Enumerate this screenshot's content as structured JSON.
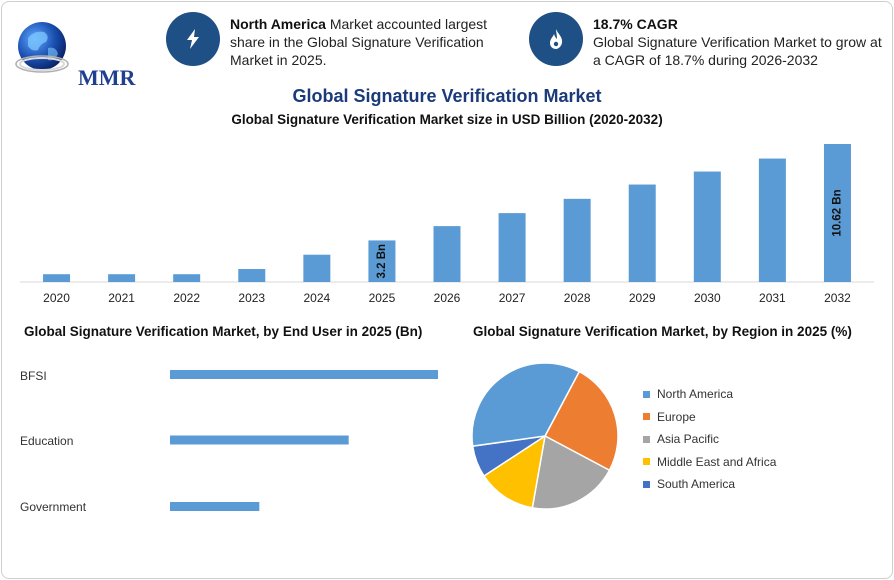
{
  "logo": {
    "text": "MMR"
  },
  "info_cards": [
    {
      "icon": "lightning-icon",
      "bold": "North America",
      "text": " Market accounted largest share in the Global Signature Verification Market in 2025."
    },
    {
      "icon": "flame-icon",
      "bold": "18.7% CAGR",
      "text": "Global Signature Verification Market to grow at a CAGR of 18.7% during 2026-2032"
    }
  ],
  "titles": {
    "main": "Global Signature Verification Market",
    "sub": "Global Signature Verification Market size in USD Billion (2020-2032)",
    "end_user": "Global Signature Verification Market, by End User in 2025 (Bn)",
    "region": "Global Signature Verification Market, by Region in 2025 (%)"
  },
  "colors": {
    "bar": "#5b9bd5",
    "dark_blue": "#1e4f85",
    "title_blue": "#1b3a7a"
  },
  "chart_data": [
    {
      "type": "bar",
      "title": "Global Signature Verification Market size in USD Billion (2020-2032)",
      "categories": [
        "2020",
        "2021",
        "2022",
        "2023",
        "2024",
        "2025",
        "2026",
        "2027",
        "2028",
        "2029",
        "2030",
        "2031",
        "2032"
      ],
      "values": [
        0.6,
        0.6,
        0.6,
        1.0,
        2.1,
        3.2,
        4.3,
        5.3,
        6.4,
        7.5,
        8.5,
        9.5,
        10.62
      ],
      "data_labels": [
        {
          "index": 5,
          "text": "3.2 Bn"
        },
        {
          "index": 12,
          "text": "10.62 Bn"
        }
      ],
      "ylim": [
        0,
        10.62
      ],
      "grid": false
    },
    {
      "type": "bar",
      "orientation": "horizontal",
      "title": "Global Signature Verification Market, by End User in 2025 (Bn)",
      "categories": [
        "BFSI",
        "Education",
        "Government"
      ],
      "values": [
        1.5,
        1.0,
        0.5
      ],
      "xlim": [
        0,
        1.5
      ]
    },
    {
      "type": "pie",
      "title": "Global Signature Verification Market, by Region in 2025 (%)",
      "categories": [
        "North America",
        "Europe",
        "Asia Pacific",
        "Middle East and Africa",
        "South America"
      ],
      "values": [
        35,
        25,
        20,
        13,
        7
      ],
      "colors": [
        "#5b9bd5",
        "#ed7d31",
        "#a5a5a5",
        "#ffc000",
        "#4472c4"
      ],
      "legend": "right"
    }
  ]
}
